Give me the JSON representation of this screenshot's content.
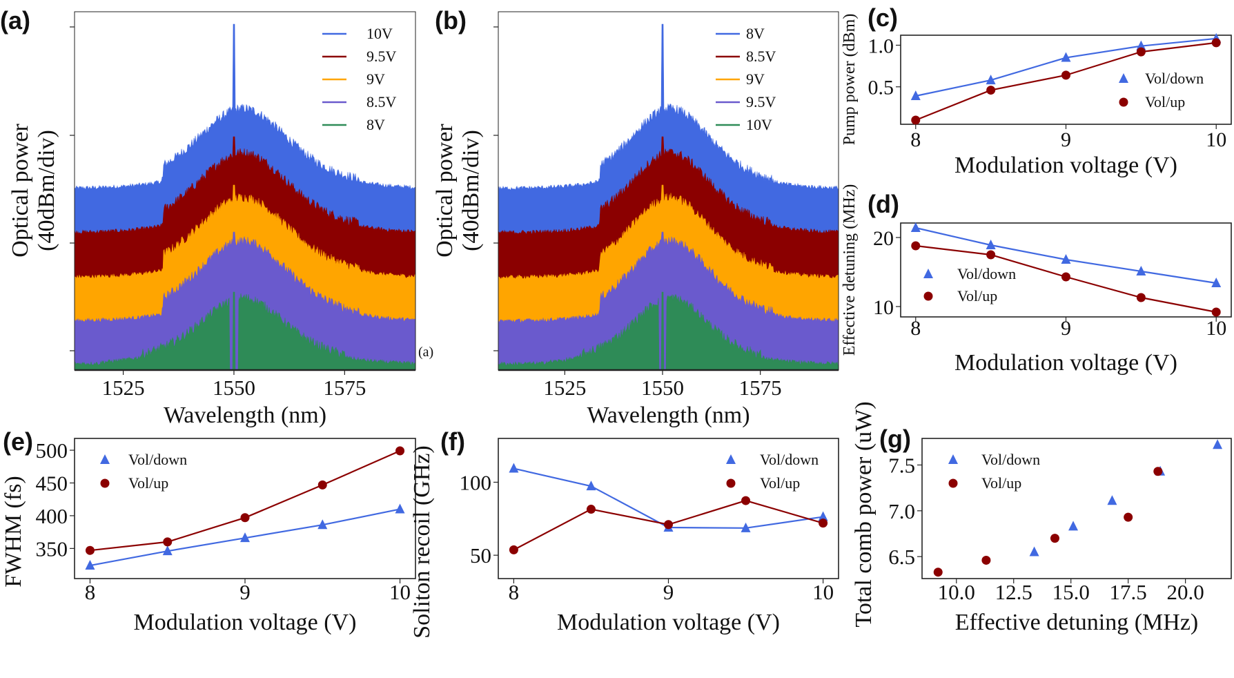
{
  "chart_data": [
    {
      "panel": "(a)",
      "type": "area",
      "xlabel": "Wavelength (nm)",
      "ylabel": [
        "Optical power",
        "(40dBm/div)"
      ],
      "xticks": [
        "1525",
        "1550",
        "1575"
      ],
      "xtick_values": [
        1525,
        1550,
        1575
      ],
      "xlim": [
        1514,
        1591
      ],
      "legend": [
        "10V",
        "9.5V",
        "9V",
        "8.5V",
        "8V"
      ],
      "colors": [
        "#4169e1",
        "#8b0000",
        "#ffa500",
        "#6a5acd",
        "#2e8b57"
      ],
      "legend_position": "top-right",
      "annotation": "(a)"
    },
    {
      "panel": "(b)",
      "type": "area",
      "xlabel": "Wavelength (nm)",
      "ylabel": [
        "Optical power",
        "(40dBm/div)"
      ],
      "xticks": [
        "1525",
        "1550",
        "1575"
      ],
      "xtick_values": [
        1525,
        1550,
        1575
      ],
      "xlim": [
        1508,
        1595
      ],
      "legend": [
        "8V",
        "8.5V",
        "9V",
        "9.5V",
        "10V"
      ],
      "colors": [
        "#4169e1",
        "#8b0000",
        "#ffa500",
        "#6a5acd",
        "#2e8b57"
      ],
      "legend_position": "top-right"
    },
    {
      "panel": "(c)",
      "type": "line",
      "xlabel": "Modulation voltage (V)",
      "ylabel": "Pump power (dBm)",
      "x": [
        8,
        8.5,
        9,
        9.5,
        10
      ],
      "series": [
        {
          "name": "Vol/down",
          "marker": "triangle",
          "color": "#4169e1",
          "values": [
            0.39,
            0.58,
            0.85,
            0.99,
            1.08
          ]
        },
        {
          "name": "Vol/up",
          "marker": "circle",
          "color": "#8b0000",
          "values": [
            0.1,
            0.46,
            0.64,
            0.92,
            1.03
          ]
        }
      ],
      "xticks": [
        "8",
        "9",
        "10"
      ],
      "xtick_values": [
        8,
        9,
        10
      ],
      "yticks": [
        "0.5",
        "1.0"
      ],
      "ytick_values": [
        0.5,
        1.0
      ],
      "xlim": [
        7.9,
        10.1
      ],
      "ylim": [
        0.05,
        1.12
      ],
      "legend_position": "right"
    },
    {
      "panel": "(d)",
      "type": "line",
      "xlabel": "Modulation voltage (V)",
      "ylabel": "Effective detuning (MHz)",
      "x": [
        8,
        8.5,
        9,
        9.5,
        10
      ],
      "series": [
        {
          "name": "Vol/down",
          "marker": "triangle",
          "color": "#4169e1",
          "values": [
            21.4,
            18.9,
            16.8,
            15.1,
            13.4
          ]
        },
        {
          "name": "Vol/up",
          "marker": "circle",
          "color": "#8b0000",
          "values": [
            18.8,
            17.5,
            14.3,
            11.3,
            9.2
          ]
        }
      ],
      "xticks": [
        "8",
        "9",
        "10"
      ],
      "xtick_values": [
        8,
        9,
        10
      ],
      "yticks": [
        "10",
        "20"
      ],
      "ytick_values": [
        10,
        20
      ],
      "xlim": [
        7.9,
        10.1
      ],
      "ylim": [
        8.5,
        22.1
      ],
      "legend_position": "left"
    },
    {
      "panel": "(e)",
      "type": "line",
      "xlabel": "Modulation voltage (V)",
      "ylabel": "FWHM (fs)",
      "x": [
        8,
        8.5,
        9,
        9.5,
        10
      ],
      "series": [
        {
          "name": "Vol/down",
          "marker": "triangle",
          "color": "#4169e1",
          "values": [
            324,
            346,
            366,
            386,
            410
          ]
        },
        {
          "name": "Vol/up",
          "marker": "circle",
          "color": "#8b0000",
          "values": [
            347,
            360,
            397,
            447,
            499
          ]
        }
      ],
      "xticks": [
        "8",
        "9",
        "10"
      ],
      "xtick_values": [
        8,
        9,
        10
      ],
      "yticks": [
        "350",
        "400",
        "450",
        "500"
      ],
      "ytick_values": [
        350,
        400,
        450,
        500
      ],
      "xlim": [
        7.9,
        10.1
      ],
      "ylim": [
        304,
        518
      ],
      "legend_position": "top-left"
    },
    {
      "panel": "(f)",
      "type": "line",
      "xlabel": "Modulation voltage (V)",
      "ylabel": "Soliton recoil (GHz)",
      "x": [
        8,
        8.5,
        9,
        9.5,
        10
      ],
      "series": [
        {
          "name": "Vol/down",
          "marker": "triangle",
          "color": "#4169e1",
          "values": [
            109.4,
            97.3,
            69.0,
            68.6,
            76.3
          ]
        },
        {
          "name": "Vol/up",
          "marker": "circle",
          "color": "#8b0000",
          "values": [
            53.7,
            81.5,
            71.0,
            87.4,
            72.0
          ]
        }
      ],
      "xticks": [
        "8",
        "9",
        "10"
      ],
      "xtick_values": [
        8,
        9,
        10
      ],
      "yticks": [
        "50",
        "100"
      ],
      "ytick_values": [
        50,
        100
      ],
      "xlim": [
        7.9,
        10.1
      ],
      "ylim": [
        34,
        130
      ],
      "legend_position": "top-right"
    },
    {
      "panel": "(g)",
      "type": "scatter",
      "xlabel": "Effective detuning (MHz)",
      "ylabel": "Total comb power (uW)",
      "series": [
        {
          "name": "Vol/down",
          "marker": "triangle",
          "color": "#4169e1",
          "x": [
            21.4,
            18.9,
            16.8,
            15.1,
            13.4
          ],
          "values": [
            7.72,
            7.43,
            7.11,
            6.83,
            6.55
          ]
        },
        {
          "name": "Vol/up",
          "marker": "circle",
          "color": "#8b0000",
          "x": [
            18.8,
            17.5,
            14.3,
            11.3,
            9.2
          ],
          "values": [
            7.43,
            6.93,
            6.7,
            6.46,
            6.33
          ]
        }
      ],
      "xticks": [
        "10.0",
        "12.5",
        "15.0",
        "17.5",
        "20.0"
      ],
      "xtick_values": [
        10,
        12.5,
        15,
        17.5,
        20
      ],
      "yticks": [
        "6.5",
        "7.0",
        "7.5"
      ],
      "ytick_values": [
        6.5,
        7.0,
        7.5
      ],
      "xlim": [
        8.5,
        22.0
      ],
      "ylim": [
        6.26,
        7.79
      ],
      "legend_position": "top-left"
    }
  ]
}
